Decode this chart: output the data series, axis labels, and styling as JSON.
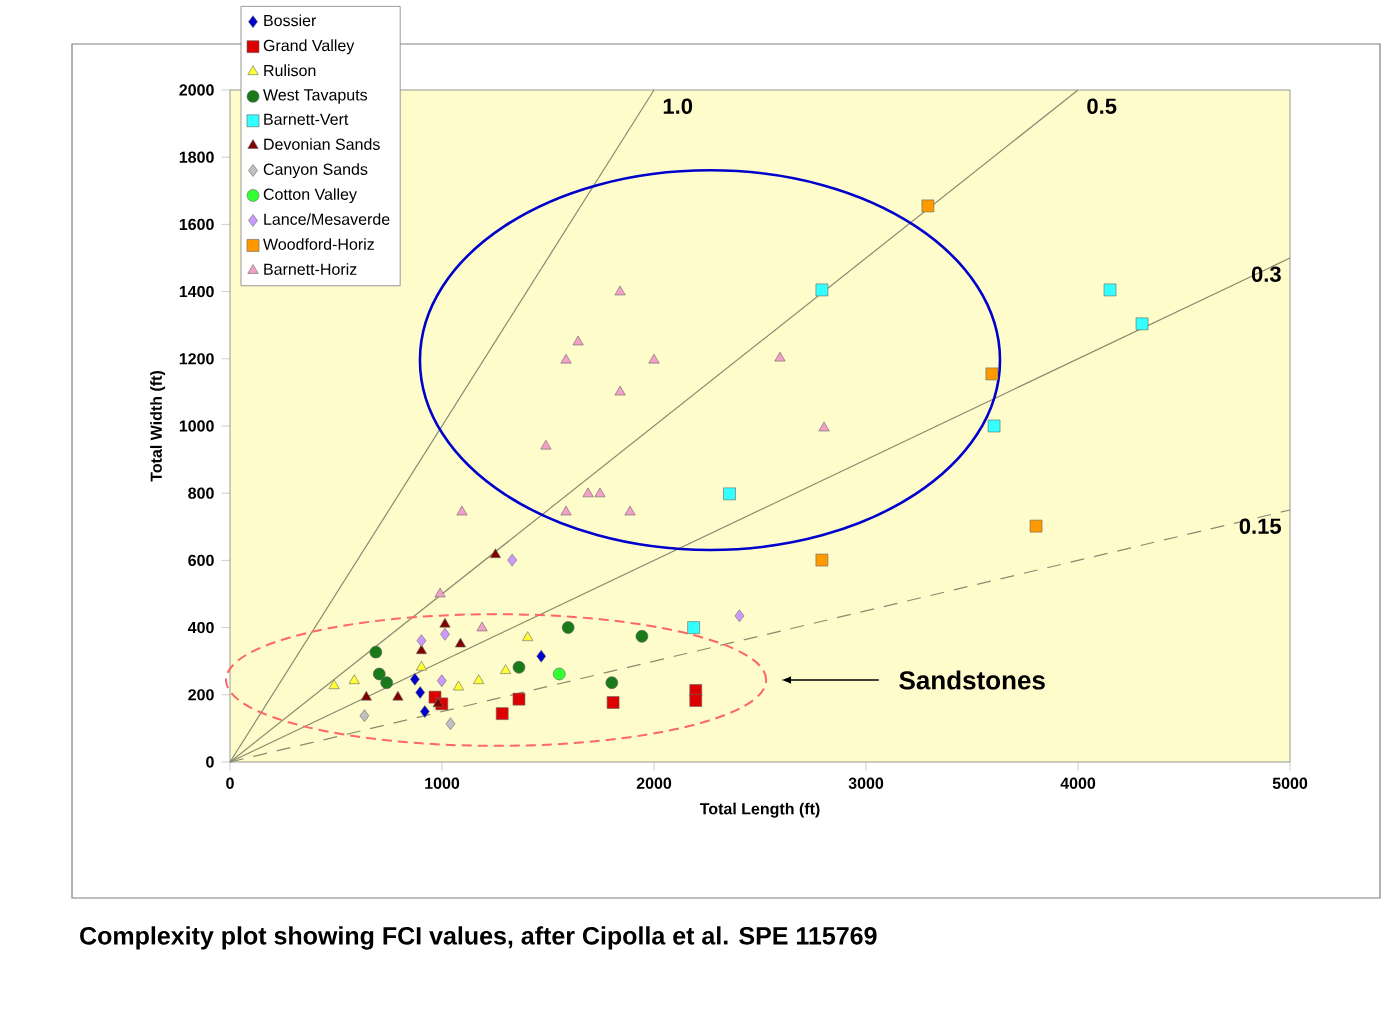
{
  "chart_data": {
    "type": "scatter",
    "xlabel": "Total Length (ft)",
    "ylabel": "Total Width (ft)",
    "xlim": [
      0,
      5000
    ],
    "ylim": [
      0,
      2000
    ],
    "xticks": [
      0,
      1000,
      2000,
      3000,
      4000,
      5000
    ],
    "yticks": [
      0,
      200,
      400,
      600,
      800,
      1000,
      1200,
      1400,
      1600,
      1800,
      2000
    ],
    "legend": "top left",
    "annotations": [
      "Sandstones",
      "Complexity plot showing FCI values, after Cipolla et al. SPE 115769"
    ],
    "series": [
      {
        "name": "Bossier",
        "color": "#0000cc",
        "marker": "diamond",
        "x": [
          1468,
          872,
          919,
          897
        ],
        "values": [
          315,
          246,
          150,
          207
        ]
      },
      {
        "name": "Grand Valley",
        "color": "#dd0000",
        "marker": "square",
        "x": [
          1284,
          1363,
          1807,
          2197,
          2197,
          967,
          999
        ],
        "values": [
          144,
          187,
          177,
          213,
          183,
          193,
          173
        ]
      },
      {
        "name": "Rulison",
        "color": "#ffff33",
        "marker": "triangle",
        "x": [
          491,
          586,
          903,
          1078,
          1173,
          1300,
          1404
        ],
        "values": [
          227,
          242,
          282,
          223,
          242,
          272,
          370
        ]
      },
      {
        "name": "West Tavaputs",
        "color": "#1a7a1a",
        "marker": "circle",
        "x": [
          688,
          704,
          739,
          1363,
          1595,
          1943,
          1801
        ],
        "values": [
          327,
          262,
          236,
          282,
          400,
          374,
          236
        ]
      },
      {
        "name": "Barnett-Vert",
        "color": "#33ffff",
        "marker": "square",
        "x": [
          2187,
          2356,
          2792,
          4151,
          4302,
          3604
        ],
        "values": [
          400,
          798,
          1405,
          1405,
          1304,
          1000
        ]
      },
      {
        "name": "Devonian Sands",
        "color": "#800000",
        "marker": "triangle",
        "x": [
          1252,
          1014,
          1087,
          903,
          643,
          792,
          982
        ],
        "values": [
          617,
          410,
          351,
          331,
          193,
          193,
          173
        ]
      },
      {
        "name": "Canyon Sands",
        "color": "#c0c0c0",
        "marker": "diamond",
        "x": [
          634,
          1040
        ],
        "values": [
          138,
          114
        ]
      },
      {
        "name": "Cotton Valley",
        "color": "#33ff33",
        "marker": "circle",
        "x": [
          1553
        ],
        "values": [
          262
        ]
      },
      {
        "name": "Lance/Mesaverde",
        "color": "#cc99ff",
        "marker": "diamond",
        "x": [
          1331,
          2403,
          903,
          1014,
          999
        ],
        "values": [
          601,
          435,
          361,
          380,
          242
        ]
      },
      {
        "name": "Woodford-Horiz",
        "color": "#ff9900",
        "marker": "square",
        "x": [
          3292,
          3594,
          2792,
          3802
        ],
        "values": [
          1655,
          1155,
          601,
          702
        ]
      },
      {
        "name": "Barnett-Horiz",
        "color": "#f4a0c8",
        "marker": "triangle",
        "x": [
          1840,
          1642,
          1585,
          2000,
          1840,
          1490,
          1689,
          1745,
          1585,
          1887,
          1094,
          991,
          1189,
          2594,
          2802
        ],
        "values": [
          1399,
          1250,
          1196,
          1196,
          1101,
          940,
          798,
          798,
          744,
          744,
          744,
          500,
          399,
          1202,
          994
        ]
      },
      {
        "type": "line",
        "name": "1.0",
        "color": "#8a8a70",
        "line_style": "solid",
        "marker": "none",
        "x": [
          0,
          2000
        ],
        "values": [
          0,
          2000
        ]
      },
      {
        "type": "line",
        "name": "0.5",
        "color": "#8a8a70",
        "line_style": "solid",
        "marker": "none",
        "x": [
          0,
          4000
        ],
        "values": [
          0,
          2000
        ]
      },
      {
        "type": "line",
        "name": "0.3",
        "color": "#8a8a70",
        "line_style": "solid",
        "marker": "none",
        "x": [
          0,
          5000
        ],
        "values": [
          0,
          1500
        ]
      },
      {
        "type": "line",
        "name": "0.15",
        "color": "#8a8a70",
        "line_style": "dashed",
        "marker": "none",
        "x": [
          0,
          5000
        ],
        "values": [
          0,
          750
        ]
      }
    ]
  }
}
